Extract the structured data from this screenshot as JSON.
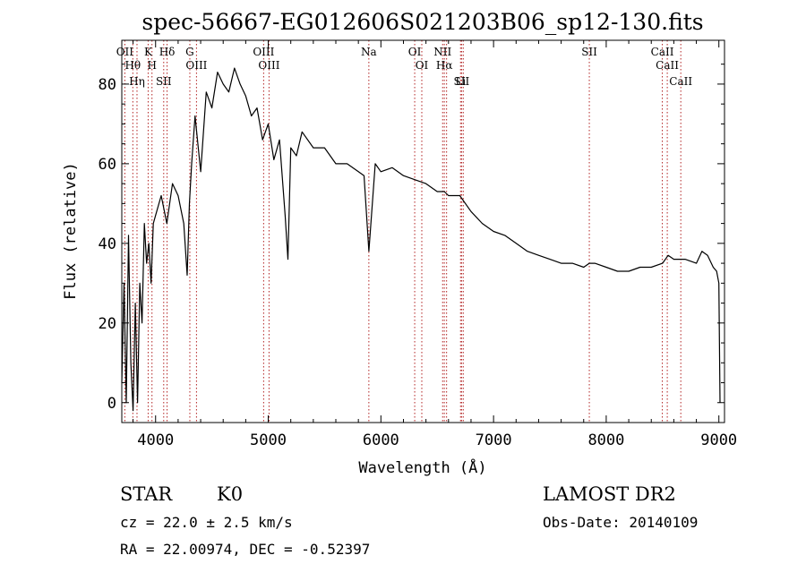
{
  "chart_data": {
    "type": "line",
    "title": "spec-56667-EG012606S021203B06_sp12-130.fits",
    "xlabel": "Wavelength (Å)",
    "ylabel": "Flux (relative)",
    "xlim": [
      3700,
      9050
    ],
    "ylim": [
      -5,
      91
    ],
    "x_ticks": [
      4000,
      5000,
      6000,
      7000,
      8000,
      9000
    ],
    "y_ticks": [
      0,
      20,
      40,
      60,
      80
    ],
    "grid": false,
    "legend": "none",
    "series": [
      {
        "color": "#000000",
        "x": [
          3700,
          3720,
          3740,
          3760,
          3780,
          3800,
          3820,
          3840,
          3860,
          3880,
          3900,
          3920,
          3940,
          3960,
          3980,
          4000,
          4050,
          4100,
          4150,
          4200,
          4250,
          4280,
          4300,
          4320,
          4350,
          4400,
          4450,
          4500,
          4550,
          4600,
          4650,
          4700,
          4750,
          4800,
          4850,
          4900,
          4950,
          5000,
          5050,
          5100,
          5150,
          5175,
          5200,
          5250,
          5300,
          5400,
          5500,
          5600,
          5700,
          5800,
          5850,
          5893,
          5950,
          6000,
          6100,
          6200,
          6300,
          6400,
          6500,
          6563,
          6600,
          6700,
          6800,
          6900,
          7000,
          7100,
          7200,
          7300,
          7400,
          7500,
          7600,
          7700,
          7800,
          7850,
          7900,
          8000,
          8100,
          8200,
          8300,
          8400,
          8500,
          8550,
          8600,
          8700,
          8800,
          8850,
          8900,
          8950,
          8980,
          9000,
          9010
        ],
        "y": [
          5,
          30,
          0,
          42,
          10,
          -2,
          25,
          0,
          30,
          20,
          45,
          35,
          40,
          30,
          45,
          47,
          52,
          45,
          55,
          52,
          45,
          32,
          50,
          60,
          72,
          58,
          78,
          74,
          83,
          80,
          78,
          84,
          80,
          77,
          72,
          74,
          66,
          70,
          61,
          66,
          47,
          36,
          64,
          62,
          68,
          64,
          64,
          60,
          60,
          58,
          57,
          38,
          60,
          58,
          59,
          57,
          56,
          55,
          53,
          53,
          52,
          52,
          48,
          45,
          43,
          42,
          40,
          38,
          37,
          36,
          35,
          35,
          34,
          35,
          35,
          34,
          33,
          33,
          34,
          34,
          35,
          37,
          36,
          36,
          35,
          38,
          37,
          34,
          33,
          30,
          0
        ]
      }
    ],
    "lines": [
      {
        "x": 3727,
        "label": "OII"
      },
      {
        "x": 3798,
        "label": "Hθ"
      },
      {
        "x": 3835,
        "label": "Hη"
      },
      {
        "x": 3934,
        "label": "K"
      },
      {
        "x": 3968,
        "label": "H"
      },
      {
        "x": 4072,
        "label": "SII"
      },
      {
        "x": 4102,
        "label": "Hδ"
      },
      {
        "x": 4304,
        "label": "G"
      },
      {
        "x": 4363,
        "label": "OIII"
      },
      {
        "x": 4959,
        "label": "OIII"
      },
      {
        "x": 5007,
        "label": "OIII"
      },
      {
        "x": 5893,
        "label": "Na"
      },
      {
        "x": 6300,
        "label": "OI"
      },
      {
        "x": 6363,
        "label": "OI"
      },
      {
        "x": 6548,
        "label": "NII"
      },
      {
        "x": 6563,
        "label": "Hα"
      },
      {
        "x": 6583,
        "label": ""
      },
      {
        "x": 6707,
        "label": "Li"
      },
      {
        "x": 6716,
        "label": "SII"
      },
      {
        "x": 6731,
        "label": ""
      },
      {
        "x": 7850,
        "label": "SII"
      },
      {
        "x": 8498,
        "label": "CaII"
      },
      {
        "x": 8542,
        "label": "CaII"
      },
      {
        "x": 8662,
        "label": "CaII"
      }
    ]
  },
  "info": {
    "class": "STAR",
    "subclass": "K0",
    "cz": "cz = 22.0 ± 2.5 km/s",
    "coords": "RA =  22.00974, DEC =  -0.52397",
    "survey": "LAMOST DR2",
    "obs_date": "Obs-Date: 20140109"
  }
}
